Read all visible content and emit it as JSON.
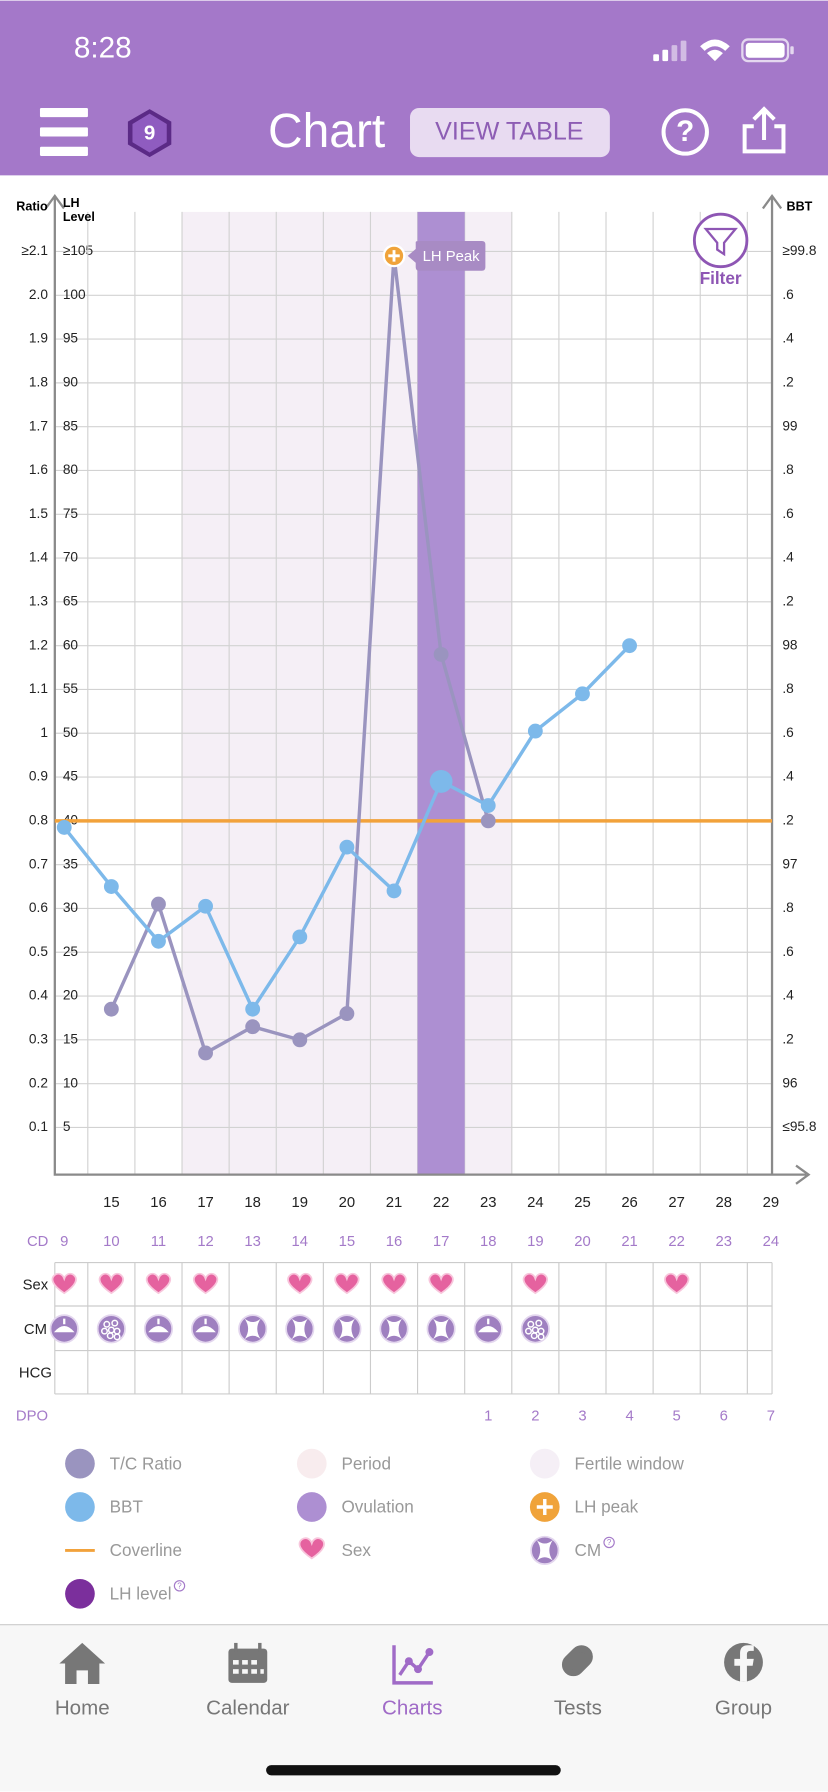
{
  "status_bar": {
    "time": "8:28"
  },
  "header": {
    "badge": "9",
    "title": "Chart",
    "button": "VIEW TABLE"
  },
  "chart_data": {
    "type": "line",
    "y_label": "Ratio",
    "lh_label": [
      "LH",
      "Level"
    ],
    "y2_label": "BBT",
    "filter": "Filter",
    "x": [
      14,
      15,
      16,
      17,
      18,
      19,
      20,
      21,
      22,
      23,
      24,
      25,
      26,
      27,
      28,
      29
    ],
    "xlim": [
      13.8,
      29
    ],
    "xticks": [
      15,
      16,
      17,
      18,
      19,
      20,
      21,
      22,
      23,
      24,
      25,
      26,
      27,
      28,
      29
    ],
    "ylim": [
      0,
      2.2
    ],
    "yticks": [
      0.1,
      0.2,
      0.3,
      0.4,
      0.5,
      0.6,
      0.7,
      0.8,
      0.9,
      1,
      1.1,
      1.2,
      1.3,
      1.4,
      1.5,
      1.6,
      1.7,
      1.8,
      1.9,
      {
        "value": 2,
        "label": "2.0"
      },
      {
        "value": 2.1,
        "label": "≥2.1"
      }
    ],
    "lhlim": [
      0,
      110
    ],
    "lhticks": [
      5,
      10,
      15,
      20,
      25,
      30,
      35,
      40,
      45,
      50,
      55,
      60,
      65,
      70,
      75,
      80,
      85,
      90,
      95,
      100,
      {
        "value": 105,
        "label": "≥105"
      }
    ],
    "y2lim": [
      95.6,
      100
    ],
    "y2ticks": [
      {
        "value": 95.8,
        "label": "≤95.8"
      },
      96,
      {
        "value": 96.2,
        "label": ".2"
      },
      {
        "value": 96.4,
        "label": ".4"
      },
      {
        "value": 96.6,
        "label": ".6"
      },
      {
        "value": 96.8,
        "label": ".8"
      },
      97,
      {
        "value": 97.2,
        "label": ".2"
      },
      {
        "value": 97.4,
        "label": ".4"
      },
      {
        "value": 97.6,
        "label": ".6"
      },
      {
        "value": 97.8,
        "label": ".8"
      },
      98,
      {
        "value": 98.2,
        "label": ".2"
      },
      {
        "value": 98.4,
        "label": ".4"
      },
      {
        "value": 98.6,
        "label": ".6"
      },
      {
        "value": 98.8,
        "label": ".8"
      },
      99,
      {
        "value": 99.2,
        "label": ".2"
      },
      {
        "value": 99.4,
        "label": ".4"
      },
      {
        "value": 99.6,
        "label": ".6"
      },
      {
        "value": 99.8,
        "label": "≥99.8"
      }
    ],
    "grid": true,
    "series": [
      {
        "name": "T/C Ratio",
        "color": "#9a94bf",
        "axis": "y",
        "values": [
          null,
          0.37,
          0.61,
          0.27,
          0.33,
          0.3,
          0.36,
          2.09,
          1.18,
          0.8,
          null,
          null,
          null,
          null,
          null,
          null
        ]
      },
      {
        "name": "BBT",
        "color": "#7db9ea",
        "axis": "y2",
        "values": [
          97.17,
          96.9,
          96.65,
          96.81,
          96.34,
          96.67,
          97.08,
          96.88,
          97.38,
          97.27,
          97.61,
          97.78,
          98.0,
          null,
          null,
          null
        ]
      }
    ],
    "coverline": {
      "name": "Coverline",
      "value": 97.2,
      "color": "#f2a23b"
    },
    "period": {
      "name": "Period",
      "color": "#f8ecee"
    },
    "fertile_window": {
      "name": "Fertile window",
      "days": [
        17,
        23
      ],
      "color": "#f5eff6"
    },
    "ovulation": {
      "name": "Ovulation",
      "day": 22,
      "color": "#ad8fd2"
    },
    "lh_peak": {
      "name": "LH peak",
      "label": "LH Peak",
      "day": 21,
      "color": "#f0a33a"
    },
    "lh_level": {
      "name": "LH level",
      "color": "#7b2f9c"
    }
  },
  "table": {
    "cd": {
      "label": "CD",
      "values": [
        9,
        10,
        11,
        12,
        13,
        14,
        15,
        16,
        17,
        18,
        19,
        20,
        21,
        22,
        23,
        24
      ]
    },
    "sex": {
      "label": "Sex",
      "values": [
        true,
        true,
        true,
        true,
        false,
        true,
        true,
        true,
        true,
        false,
        true,
        false,
        false,
        true,
        false,
        false
      ]
    },
    "cm": {
      "label": "CM",
      "values": [
        "dome",
        "dots",
        "dome",
        "dome",
        "hourglass",
        "hourglass",
        "hourglass",
        "hourglass",
        "hourglass",
        "dome",
        "dots",
        null,
        null,
        null,
        null,
        null
      ]
    },
    "hcg": {
      "label": "HCG"
    },
    "dpo": {
      "label": "DPO",
      "values": [
        null,
        null,
        null,
        null,
        null,
        null,
        null,
        null,
        null,
        1,
        2,
        3,
        4,
        5,
        6,
        7
      ]
    }
  },
  "tab_bar": {
    "active": 2,
    "tabs": [
      "Home",
      "Calendar",
      "Charts",
      "Tests",
      "Group"
    ]
  }
}
